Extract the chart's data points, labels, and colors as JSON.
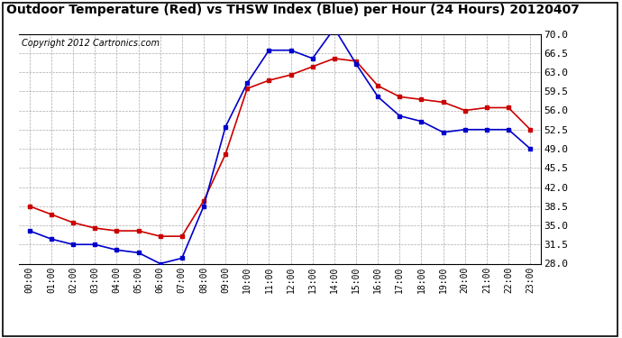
{
  "title": "Outdoor Temperature (Red) vs THSW Index (Blue) per Hour (24 Hours) 20120407",
  "copyright": "Copyright 2012 Cartronics.com",
  "x_labels": [
    "00:00",
    "01:00",
    "02:00",
    "03:00",
    "04:00",
    "05:00",
    "06:00",
    "07:00",
    "08:00",
    "09:00",
    "10:00",
    "11:00",
    "12:00",
    "13:00",
    "14:00",
    "15:00",
    "16:00",
    "17:00",
    "18:00",
    "19:00",
    "20:00",
    "21:00",
    "22:00",
    "23:00"
  ],
  "red_temp": [
    38.5,
    37.0,
    35.5,
    34.5,
    34.0,
    34.0,
    33.0,
    33.0,
    39.5,
    48.0,
    60.0,
    61.5,
    62.5,
    64.0,
    65.5,
    65.0,
    60.5,
    58.5,
    58.0,
    57.5,
    56.0,
    56.5,
    56.5,
    52.5
  ],
  "blue_thsw": [
    34.0,
    32.5,
    31.5,
    31.5,
    30.5,
    30.0,
    28.0,
    29.0,
    38.5,
    53.0,
    61.0,
    67.0,
    67.0,
    65.5,
    71.0,
    64.5,
    58.5,
    55.0,
    54.0,
    52.0,
    52.5,
    52.5,
    52.5,
    49.0
  ],
  "ymin": 28.0,
  "ymax": 70.0,
  "yticks": [
    28.0,
    31.5,
    35.0,
    38.5,
    42.0,
    45.5,
    49.0,
    52.5,
    56.0,
    59.5,
    63.0,
    66.5,
    70.0
  ],
  "red_color": "#cc0000",
  "blue_color": "#0000cc",
  "background_color": "#ffffff",
  "grid_color": "#aaaaaa",
  "title_fontsize": 10,
  "copyright_fontsize": 7,
  "marker_size": 3.0,
  "line_width": 1.2
}
